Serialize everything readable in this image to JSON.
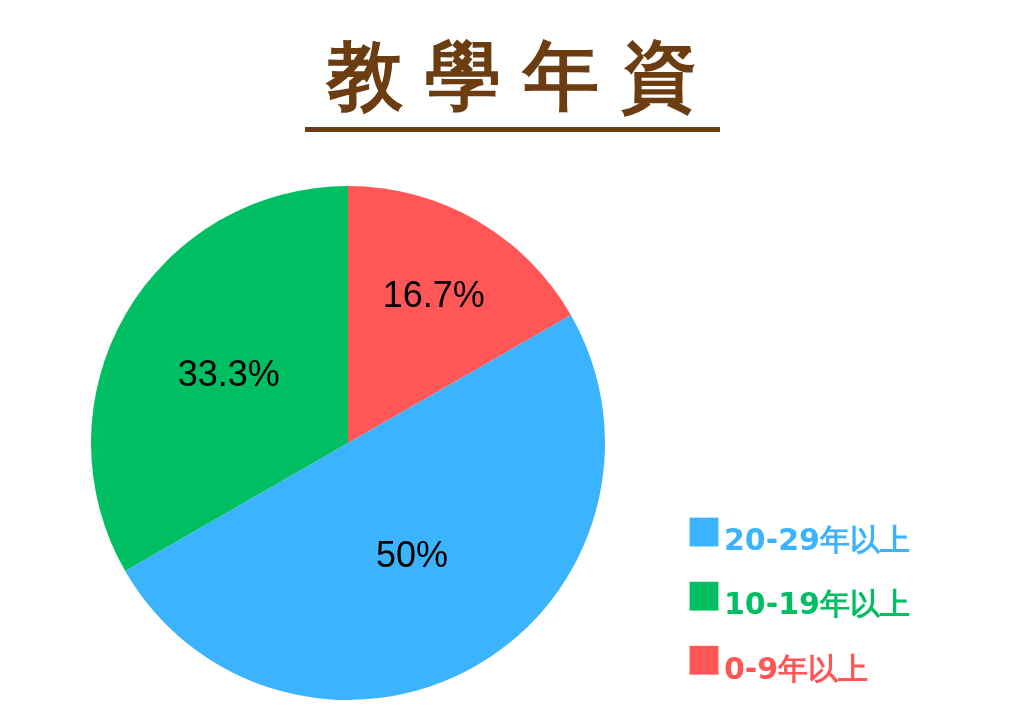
{
  "chart_data": {
    "type": "pie",
    "title": "教學年資",
    "categories": [
      "20-29年以上",
      "10-19年以上",
      "0-9年以上"
    ],
    "values": [
      50,
      33.3,
      16.7
    ],
    "colors": [
      "#3bb4fd",
      "#00bf63",
      "#ff5757"
    ],
    "value_labels": [
      "50%",
      "33.3%",
      "16.7%"
    ],
    "legend": "bottom right"
  }
}
